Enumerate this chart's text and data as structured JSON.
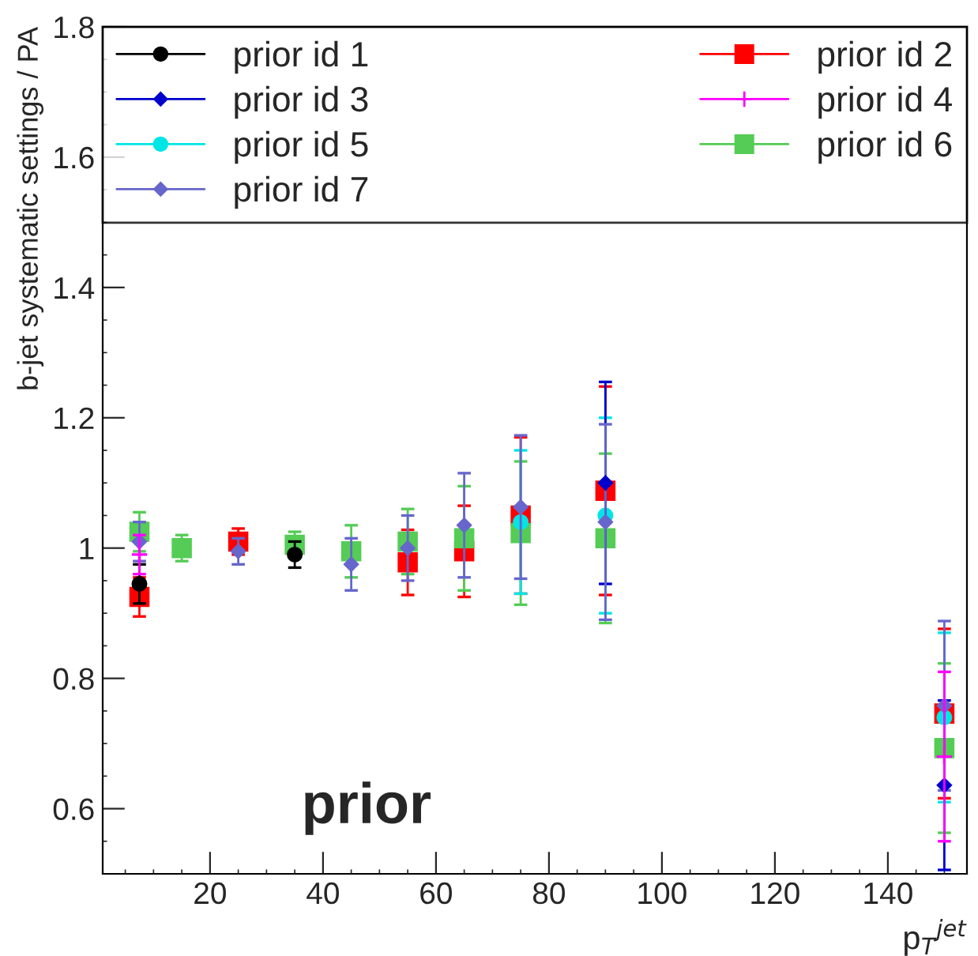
{
  "chart_data": {
    "type": "scatter",
    "ylabel": "b-jet systematic settings / PA",
    "xlabel": "p$_{T}$$^{jet}$",
    "annotations": [
      "prior"
    ],
    "x": [
      7.5,
      15,
      25,
      35,
      45,
      55,
      65,
      75,
      90,
      150
    ],
    "xlim": [
      1,
      154
    ],
    "xticks": [
      20,
      40,
      60,
      80,
      100,
      120,
      140
    ],
    "ylim": [
      0.5,
      1.8
    ],
    "yticks": [
      0.6,
      0.8,
      1,
      1.2,
      1.4,
      1.6,
      1.8
    ],
    "legend": "top",
    "grid": false,
    "series": [
      {
        "name": "prior id 1",
        "color": "#000000",
        "marker": "circle",
        "values": [
          0.945,
          null,
          null,
          0.99,
          null,
          null,
          null,
          null,
          null,
          null
        ],
        "errors": [
          0.03,
          null,
          null,
          0.02,
          null,
          null,
          null,
          null,
          null,
          null
        ]
      },
      {
        "name": "prior id 2",
        "color": "#ff0000",
        "marker": "square",
        "values": [
          0.925,
          null,
          1.01,
          null,
          null,
          0.978,
          0.995,
          1.05,
          1.088,
          0.746
        ],
        "errors": [
          0.03,
          null,
          0.02,
          null,
          null,
          0.05,
          0.07,
          0.12,
          0.16,
          0.13
        ]
      },
      {
        "name": "prior id 3",
        "color": "#0000cc",
        "marker": "diamond",
        "values": [
          null,
          null,
          null,
          null,
          null,
          null,
          null,
          null,
          1.1,
          0.636
        ],
        "errors": [
          null,
          null,
          null,
          null,
          null,
          null,
          null,
          null,
          0.155,
          0.13
        ]
      },
      {
        "name": "prior id 4",
        "color": "#ff00ff",
        "marker": "cross",
        "values": [
          0.99,
          null,
          null,
          null,
          null,
          null,
          null,
          null,
          null,
          0.68
        ],
        "errors": [
          0.03,
          null,
          null,
          null,
          null,
          null,
          null,
          null,
          null,
          0.13
        ]
      },
      {
        "name": "prior id 5",
        "color": "#00e5e5",
        "marker": "circle",
        "values": [
          null,
          null,
          null,
          null,
          null,
          null,
          null,
          1.04,
          1.05,
          0.74
        ],
        "errors": [
          null,
          null,
          null,
          null,
          null,
          null,
          null,
          0.11,
          0.15,
          0.13
        ]
      },
      {
        "name": "prior id 6",
        "color": "#55cc55",
        "marker": "square",
        "values": [
          1.025,
          1.0,
          null,
          1.005,
          0.995,
          1.01,
          1.015,
          1.023,
          1.015,
          0.693
        ],
        "errors": [
          0.03,
          0.02,
          null,
          0.02,
          0.04,
          0.05,
          0.08,
          0.11,
          0.13,
          0.13
        ]
      },
      {
        "name": "prior id 7",
        "color": "#6666cc",
        "marker": "diamond",
        "values": [
          1.01,
          null,
          0.995,
          null,
          0.975,
          1.0,
          1.035,
          1.063,
          1.04,
          0.758
        ],
        "errors": [
          0.03,
          null,
          0.02,
          null,
          0.04,
          0.05,
          0.08,
          0.11,
          0.15,
          0.13
        ]
      }
    ]
  }
}
